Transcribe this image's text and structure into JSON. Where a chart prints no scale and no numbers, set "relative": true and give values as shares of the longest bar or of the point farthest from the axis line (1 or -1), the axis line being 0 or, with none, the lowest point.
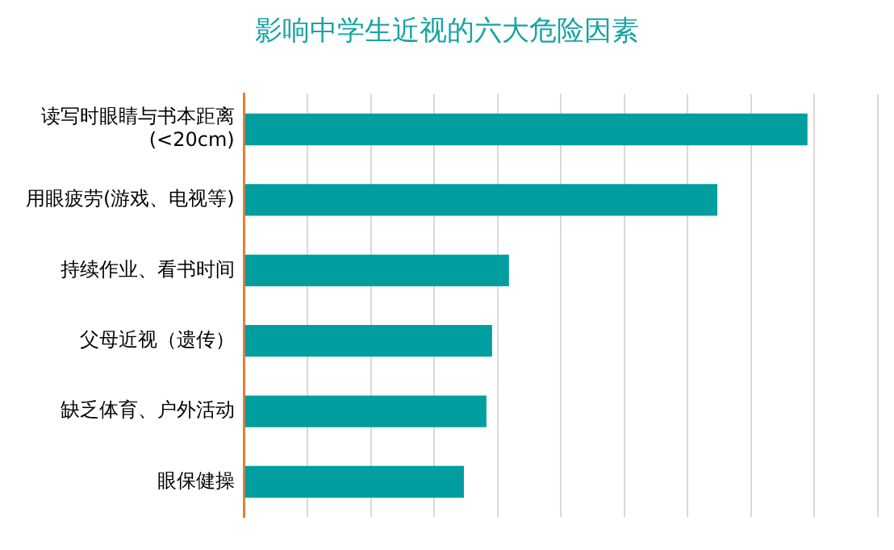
{
  "chart_data": {
    "type": "bar",
    "orientation": "horizontal",
    "relative": true,
    "title": "影响中学生近视的六大危险因素",
    "categories": [
      "读写时眼睛与书本距离(<20cm)",
      "用眼疲劳(游戏、电视等)",
      "持续作业、看书时间",
      "父母近视（遗传）",
      "缺乏体育、户外活动",
      "眼保健操"
    ],
    "values": [
      1,
      0.84,
      0.47,
      0.44,
      0.43,
      0.39
    ],
    "color": "#009e9e",
    "grid": "x",
    "legend": false
  }
}
